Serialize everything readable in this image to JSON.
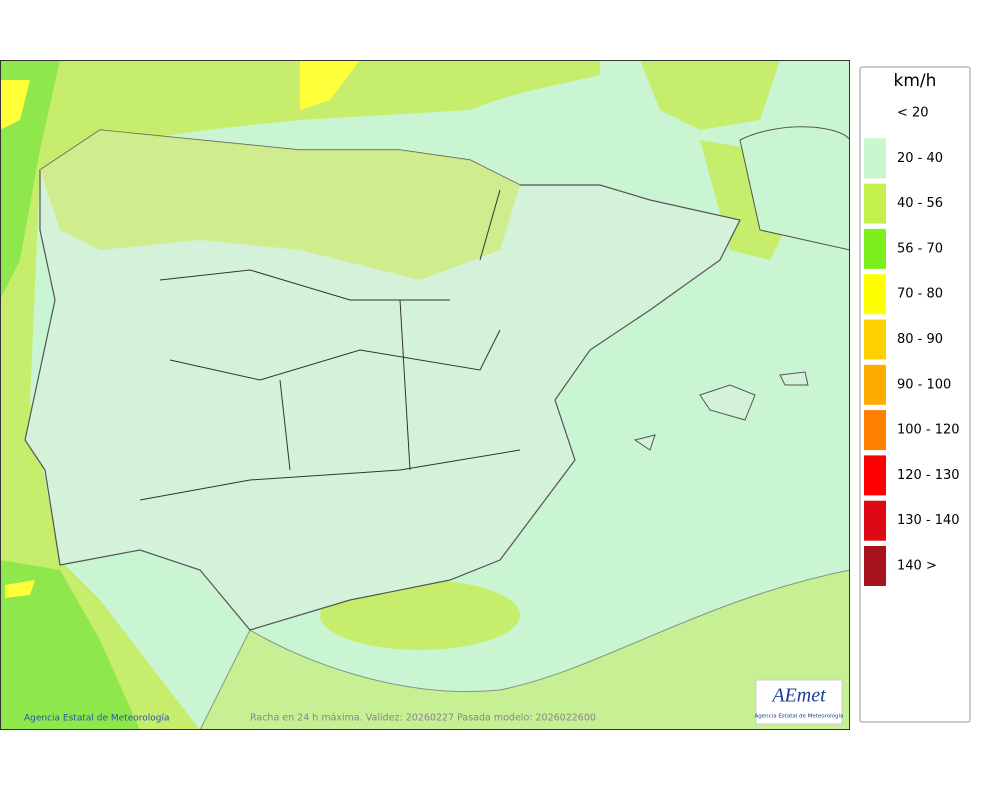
{
  "legend": {
    "title": "km/h",
    "items": [
      {
        "label": "< 20",
        "color": "#ffffff"
      },
      {
        "label": "20 - 40",
        "color": "#c8f7cf"
      },
      {
        "label": "40 - 56",
        "color": "#c3f04a"
      },
      {
        "label": "56 - 70",
        "color": "#7cf01c"
      },
      {
        "label": "70 - 80",
        "color": "#ffff00"
      },
      {
        "label": "80 - 90",
        "color": "#ffd000"
      },
      {
        "label": "90 - 100",
        "color": "#ffaa00"
      },
      {
        "label": "100 - 120",
        "color": "#ff8000"
      },
      {
        "label": "120 - 130",
        "color": "#ff0000"
      },
      {
        "label": "130 - 140",
        "color": "#dd0a16"
      },
      {
        "label": "140 >",
        "color": "#a8141e"
      }
    ]
  },
  "footer": {
    "credit": "Agencia Estatal de Meteorología",
    "caption": "Racha en 24 h máxima. Validez: 20260227 Pasada modelo: 2026022600"
  },
  "logo": {
    "name": "AEmet",
    "subtitle": "Agencia Estatal de Meteorología"
  }
}
